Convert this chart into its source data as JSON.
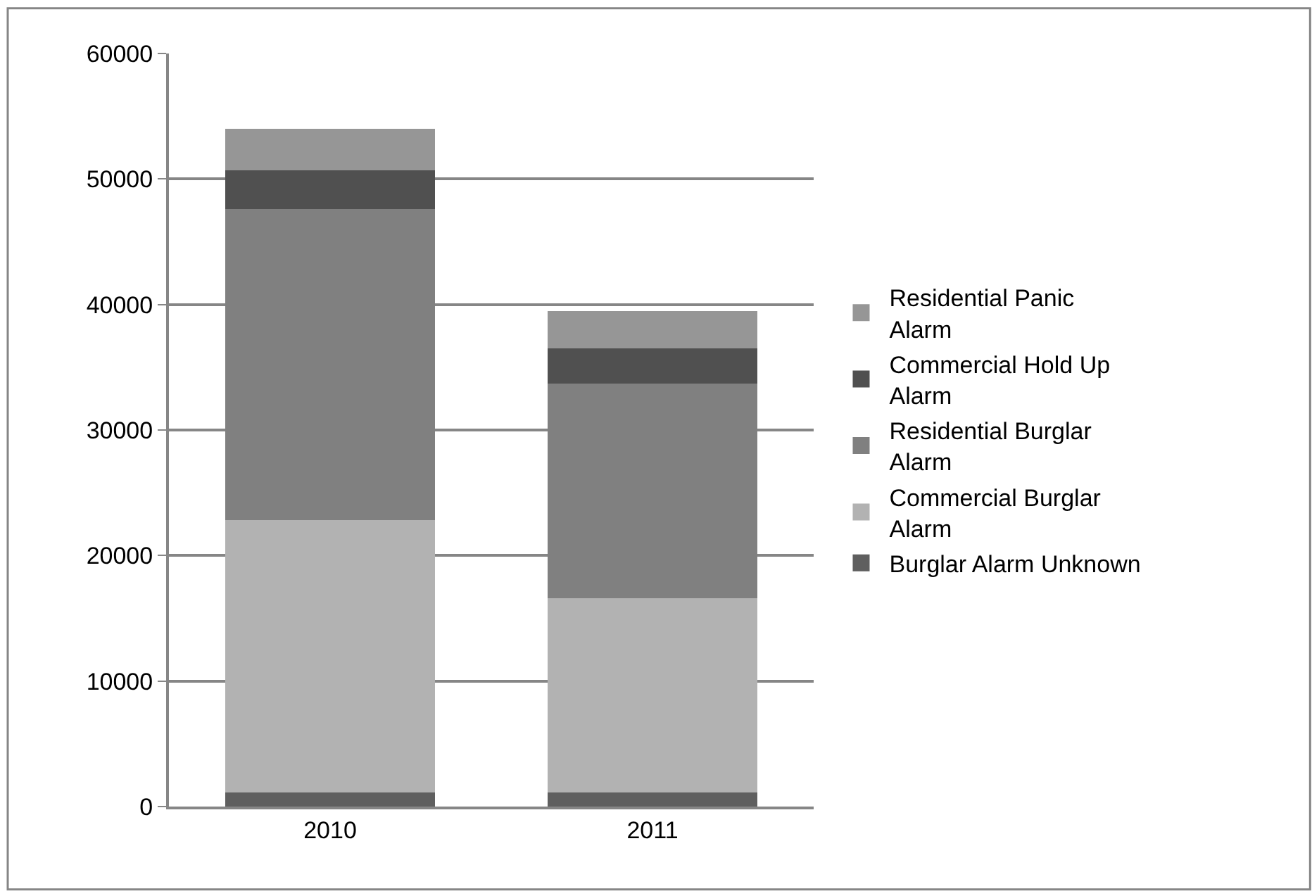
{
  "chart_data": {
    "type": "bar",
    "stacked": true,
    "categories": [
      "2010",
      "2011"
    ],
    "series": [
      {
        "name": "Burglar Alarm Unknown",
        "color": "#5f5f5f",
        "values": [
          1100,
          1100
        ]
      },
      {
        "name": "Commercial Burglar Alarm",
        "color": "#b2b2b2",
        "values": [
          21700,
          15500
        ]
      },
      {
        "name": "Residential Burglar Alarm",
        "color": "#808080",
        "values": [
          24800,
          17100
        ]
      },
      {
        "name": "Commercial Hold Up Alarm",
        "color": "#505050",
        "values": [
          3100,
          2800
        ]
      },
      {
        "name": "Residential Panic  Alarm",
        "color": "#969696",
        "values": [
          3300,
          3000
        ]
      }
    ],
    "ylim": [
      0,
      60000
    ],
    "yticks": [
      0,
      10000,
      20000,
      30000,
      40000,
      50000,
      60000
    ],
    "grid": "y",
    "legend": "right"
  }
}
